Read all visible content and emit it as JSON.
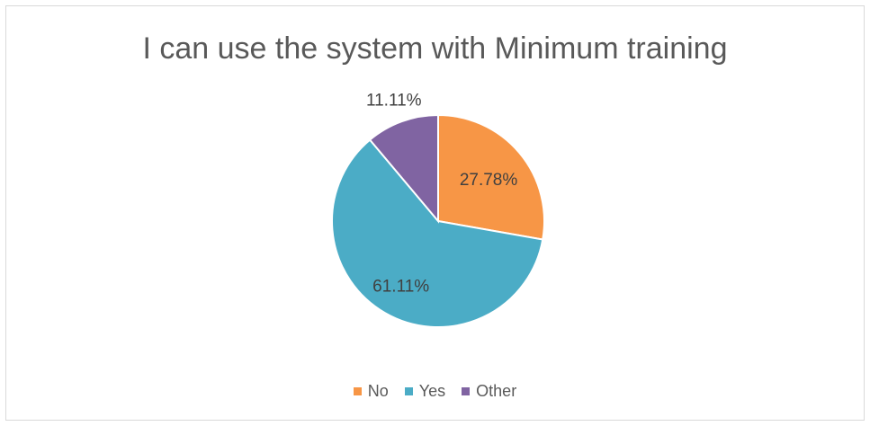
{
  "chart_data": {
    "type": "pie",
    "title": "I can use the system with Minimum training",
    "categories": [
      "No",
      "Yes",
      "Other"
    ],
    "values": [
      27.78,
      61.11,
      11.11
    ],
    "labels": [
      "27.78%",
      "61.11%",
      "11.11%"
    ],
    "colors": [
      "#F79646",
      "#4BACC6",
      "#8064A2"
    ],
    "legend_position": "bottom"
  }
}
